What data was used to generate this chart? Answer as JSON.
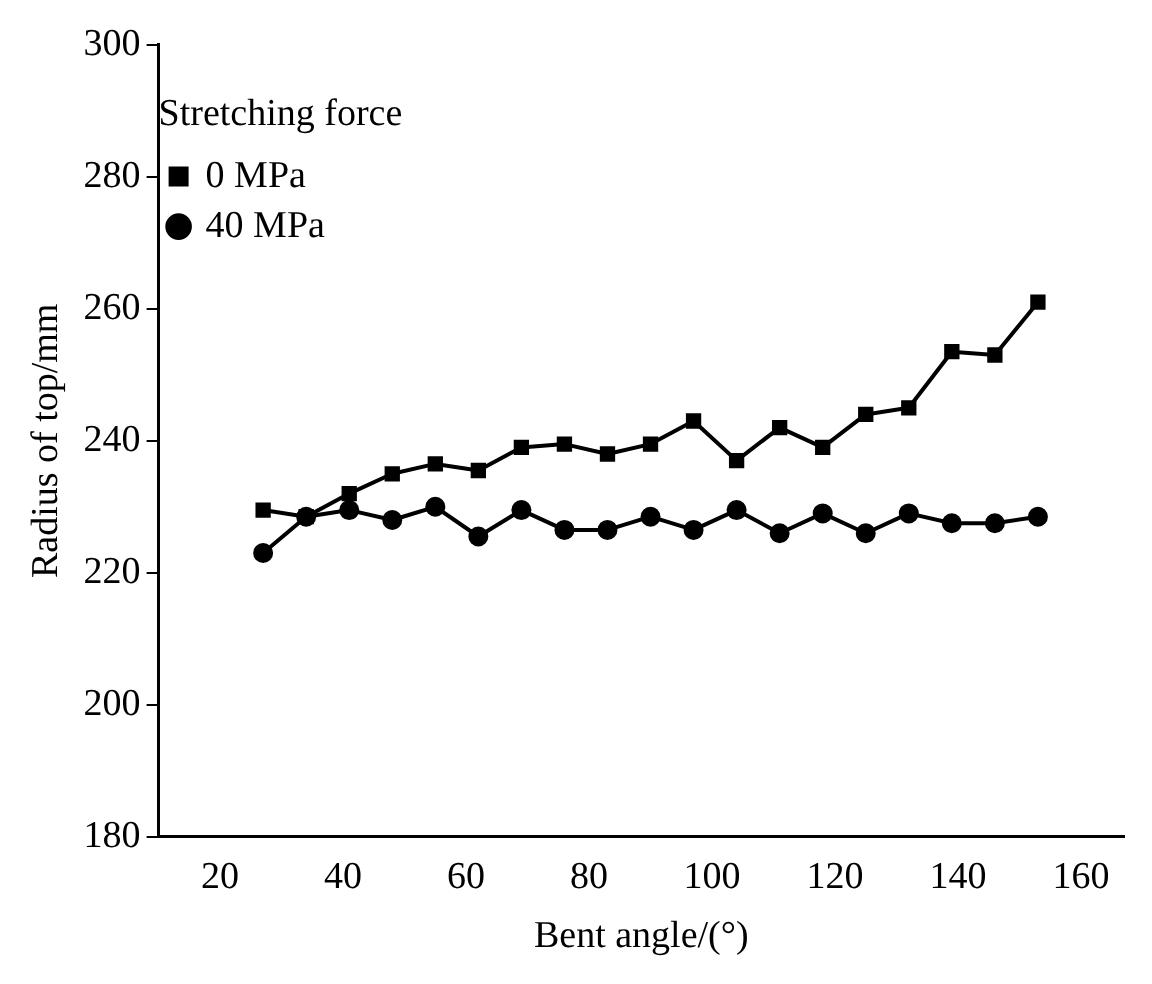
{
  "chart_data": {
    "type": "line",
    "xlabel": "Bent angle/(°)",
    "ylabel": "Radius of top/mm",
    "legend_title": "Stretching force",
    "legend": "top left",
    "grid": false,
    "x": [
      27,
      34,
      41,
      48,
      55,
      62,
      69,
      76,
      83,
      90,
      97,
      104,
      111,
      118,
      125,
      132,
      139,
      146,
      153
    ],
    "series": [
      {
        "name": "0 MPa",
        "color": "#000000",
        "marker": "square",
        "values": [
          229.5,
          228.5,
          232,
          235,
          236.5,
          235.5,
          239,
          239.5,
          238,
          239.5,
          243,
          237,
          242,
          239,
          244,
          245,
          253.5,
          253,
          261
        ]
      },
      {
        "name": "40 MPa",
        "color": "#000000",
        "marker": "circle",
        "values": [
          223,
          228.5,
          229.5,
          228,
          230,
          225.5,
          229.5,
          226.5,
          226.5,
          228.5,
          226.5,
          229.5,
          226,
          229,
          226,
          229,
          227.5,
          227.5,
          228.5
        ]
      }
    ],
    "xlim": [
      10,
      167
    ],
    "xticks": [
      20,
      40,
      60,
      80,
      100,
      120,
      140,
      160
    ],
    "ylim": [
      180,
      300
    ],
    "yticks": [
      180,
      200,
      220,
      240,
      260,
      280,
      300
    ]
  }
}
